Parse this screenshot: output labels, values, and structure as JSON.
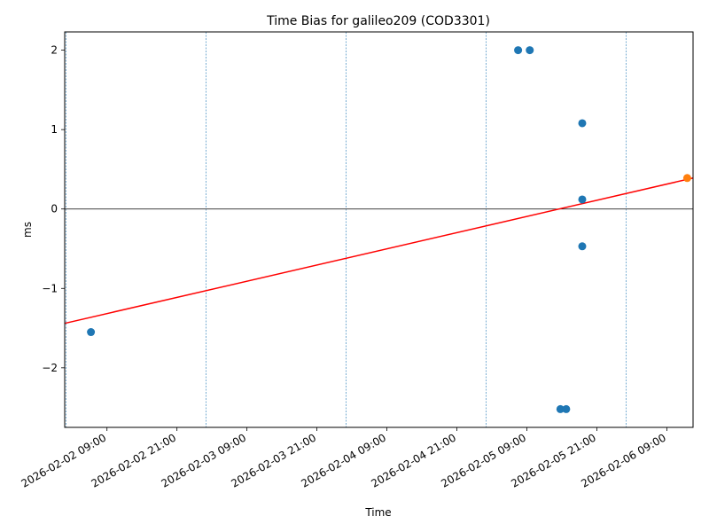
{
  "chart_data": {
    "type": "scatter",
    "title": "Time Bias for galileo209 (COD3301)",
    "xlabel": "Time",
    "ylabel": "ms",
    "xlim": [
      "2026-02-02 01:45",
      "2026-02-06 13:30"
    ],
    "ylim": [
      -2.75,
      2.23
    ],
    "x_ticks": [
      "2026-02-02 09:00",
      "2026-02-02 21:00",
      "2026-02-03 09:00",
      "2026-02-03 21:00",
      "2026-02-04 09:00",
      "2026-02-04 21:00",
      "2026-02-05 09:00",
      "2026-02-05 21:00",
      "2026-02-06 09:00"
    ],
    "y_ticks": [
      {
        "value": -2,
        "label": "−2"
      },
      {
        "value": -1,
        "label": "−1"
      },
      {
        "value": 0,
        "label": "0"
      },
      {
        "value": 1,
        "label": "1"
      },
      {
        "value": 2,
        "label": "2"
      }
    ],
    "grid": false,
    "zero_line": true,
    "vertical_markers": [
      "2026-02-02 02:00",
      "2026-02-03 02:00",
      "2026-02-04 02:00",
      "2026-02-05 02:00",
      "2026-02-06 02:00"
    ],
    "series": [
      {
        "color": "#1f77b4",
        "points": [
          {
            "x": "2026-02-02 06:15",
            "y": -1.55
          },
          {
            "x": "2026-02-05 07:30",
            "y": 2.0
          },
          {
            "x": "2026-02-05 09:30",
            "y": 2.0
          },
          {
            "x": "2026-02-05 14:45",
            "y": -2.52
          },
          {
            "x": "2026-02-05 15:45",
            "y": -2.52
          },
          {
            "x": "2026-02-05 18:30",
            "y": 1.08
          },
          {
            "x": "2026-02-05 18:30",
            "y": 0.12
          },
          {
            "x": "2026-02-05 18:30",
            "y": -0.47
          }
        ]
      },
      {
        "color": "#ff7f0e",
        "points": [
          {
            "x": "2026-02-06 12:30",
            "y": 0.39
          }
        ]
      }
    ],
    "fit_line": {
      "color": "#ff0000",
      "points": [
        {
          "x": "2026-02-02 01:45",
          "y": -1.44
        },
        {
          "x": "2026-02-06 13:30",
          "y": 0.39
        }
      ]
    }
  }
}
